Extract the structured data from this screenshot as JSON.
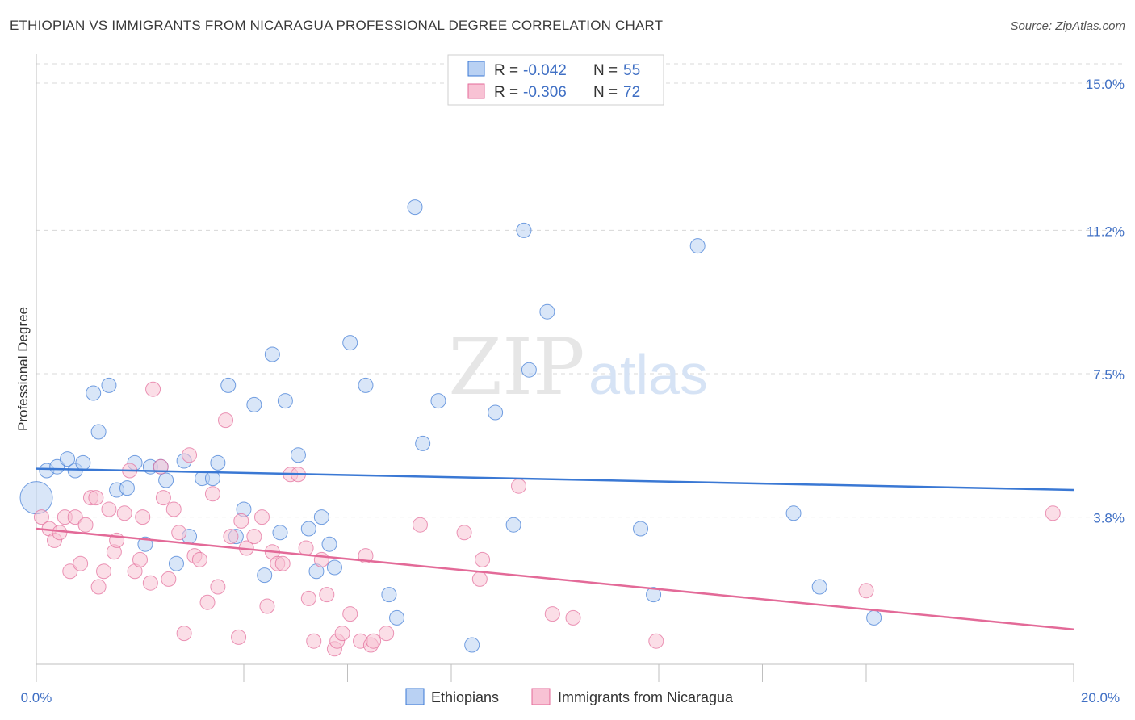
{
  "title": "ETHIOPIAN VS IMMIGRANTS FROM NICARAGUA PROFESSIONAL DEGREE CORRELATION CHART",
  "source": "Source: ZipAtlas.com",
  "watermark": {
    "zip": "ZIP",
    "atlas": "atlas"
  },
  "colors": {
    "blue": "#3a78d4",
    "blue_fill": "#b9d1f3",
    "pink": "#e36a98",
    "pink_fill": "#f8c2d4",
    "grid": "#d8d8d8",
    "axis_text": "#3f6fc4"
  },
  "legend": {
    "rows": [
      {
        "r_label": "R =",
        "r_value": "-0.042",
        "n_label": "N =",
        "n_value": "55"
      },
      {
        "r_label": "R =",
        "r_value": "-0.306",
        "n_label": "N =",
        "n_value": "72"
      }
    ]
  },
  "chart_data": {
    "type": "scatter",
    "xlabel": "",
    "ylabel": "Professional Degree",
    "xlim": [
      0,
      20
    ],
    "ylim": [
      0,
      15.5
    ],
    "x_tick_labels": [
      "0.0%",
      "20.0%"
    ],
    "y_ticks": [
      3.8,
      7.5,
      11.2,
      15.0
    ],
    "y_tick_labels": [
      "3.8%",
      "7.5%",
      "11.2%",
      "15.0%"
    ],
    "grid": true,
    "legend_position": "top-center",
    "series": [
      {
        "name": "Ethiopians",
        "color": "#3a78d4",
        "trend": {
          "x": [
            0,
            20
          ],
          "y": [
            5.05,
            4.5
          ]
        },
        "points": [
          [
            0.2,
            5.0
          ],
          [
            0.4,
            5.1
          ],
          [
            0.6,
            5.3
          ],
          [
            0.75,
            5.0
          ],
          [
            0.9,
            5.2
          ],
          [
            1.1,
            7.0
          ],
          [
            1.2,
            6.0
          ],
          [
            1.4,
            7.2
          ],
          [
            1.55,
            4.5
          ],
          [
            1.75,
            4.55
          ],
          [
            1.9,
            5.2
          ],
          [
            2.1,
            3.1
          ],
          [
            2.2,
            5.1
          ],
          [
            2.4,
            5.1
          ],
          [
            2.5,
            4.75
          ],
          [
            2.7,
            2.6
          ],
          [
            2.85,
            5.25
          ],
          [
            2.95,
            3.3
          ],
          [
            3.2,
            4.8
          ],
          [
            3.4,
            4.8
          ],
          [
            3.5,
            5.2
          ],
          [
            3.7,
            7.2
          ],
          [
            3.85,
            3.3
          ],
          [
            4.0,
            4.0
          ],
          [
            4.2,
            6.7
          ],
          [
            4.4,
            2.3
          ],
          [
            4.55,
            8.0
          ],
          [
            4.7,
            3.4
          ],
          [
            4.8,
            6.8
          ],
          [
            5.05,
            5.4
          ],
          [
            5.25,
            3.5
          ],
          [
            5.4,
            2.4
          ],
          [
            5.5,
            3.8
          ],
          [
            5.65,
            3.1
          ],
          [
            5.75,
            2.5
          ],
          [
            6.05,
            8.3
          ],
          [
            6.35,
            7.2
          ],
          [
            6.8,
            1.8
          ],
          [
            6.95,
            1.2
          ],
          [
            7.3,
            11.8
          ],
          [
            7.45,
            5.7
          ],
          [
            7.75,
            6.8
          ],
          [
            8.4,
            0.5
          ],
          [
            8.85,
            6.5
          ],
          [
            9.2,
            3.6
          ],
          [
            9.4,
            11.2
          ],
          [
            9.5,
            7.6
          ],
          [
            9.85,
            9.1
          ],
          [
            11.65,
            3.5
          ],
          [
            11.9,
            1.8
          ],
          [
            12.75,
            10.8
          ],
          [
            14.6,
            3.9
          ],
          [
            15.1,
            2.0
          ],
          [
            16.15,
            1.2
          ],
          [
            0.0,
            4.3
          ]
        ]
      },
      {
        "name": "Immigrants from Nicaragua",
        "color": "#e36a98",
        "trend": {
          "x": [
            0,
            20
          ],
          "y": [
            3.5,
            0.9
          ]
        },
        "points": [
          [
            0.1,
            3.8
          ],
          [
            0.25,
            3.5
          ],
          [
            0.35,
            3.2
          ],
          [
            0.45,
            3.4
          ],
          [
            0.55,
            3.8
          ],
          [
            0.65,
            2.4
          ],
          [
            0.75,
            3.8
          ],
          [
            0.85,
            2.6
          ],
          [
            0.95,
            3.6
          ],
          [
            1.05,
            4.3
          ],
          [
            1.15,
            4.3
          ],
          [
            1.2,
            2.0
          ],
          [
            1.3,
            2.4
          ],
          [
            1.4,
            4.0
          ],
          [
            1.5,
            2.9
          ],
          [
            1.55,
            3.2
          ],
          [
            1.7,
            3.9
          ],
          [
            1.8,
            5.0
          ],
          [
            1.9,
            2.4
          ],
          [
            2.0,
            2.7
          ],
          [
            2.05,
            3.8
          ],
          [
            2.2,
            2.1
          ],
          [
            2.25,
            7.1
          ],
          [
            2.4,
            5.1
          ],
          [
            2.45,
            4.3
          ],
          [
            2.55,
            2.2
          ],
          [
            2.65,
            4.0
          ],
          [
            2.75,
            3.4
          ],
          [
            2.85,
            0.8
          ],
          [
            2.95,
            5.4
          ],
          [
            3.05,
            2.8
          ],
          [
            3.15,
            2.7
          ],
          [
            3.3,
            1.6
          ],
          [
            3.4,
            4.4
          ],
          [
            3.5,
            2.0
          ],
          [
            3.65,
            6.3
          ],
          [
            3.75,
            3.3
          ],
          [
            3.9,
            0.7
          ],
          [
            3.95,
            3.7
          ],
          [
            4.05,
            3.0
          ],
          [
            4.2,
            3.3
          ],
          [
            4.35,
            3.8
          ],
          [
            4.45,
            1.5
          ],
          [
            4.55,
            2.9
          ],
          [
            4.65,
            2.6
          ],
          [
            4.75,
            2.6
          ],
          [
            4.9,
            4.9
          ],
          [
            5.05,
            4.9
          ],
          [
            5.2,
            3.0
          ],
          [
            5.25,
            1.7
          ],
          [
            5.35,
            0.6
          ],
          [
            5.5,
            2.7
          ],
          [
            5.6,
            1.8
          ],
          [
            5.75,
            0.4
          ],
          [
            5.8,
            0.6
          ],
          [
            5.9,
            0.8
          ],
          [
            6.05,
            1.3
          ],
          [
            6.25,
            0.6
          ],
          [
            6.35,
            2.8
          ],
          [
            6.45,
            0.5
          ],
          [
            6.5,
            0.6
          ],
          [
            6.75,
            0.8
          ],
          [
            7.4,
            3.6
          ],
          [
            8.25,
            3.4
          ],
          [
            8.55,
            2.2
          ],
          [
            8.6,
            2.7
          ],
          [
            9.3,
            4.6
          ],
          [
            9.95,
            1.3
          ],
          [
            10.35,
            1.2
          ],
          [
            11.95,
            0.6
          ],
          [
            16.0,
            1.9
          ],
          [
            19.6,
            3.9
          ]
        ]
      }
    ]
  }
}
